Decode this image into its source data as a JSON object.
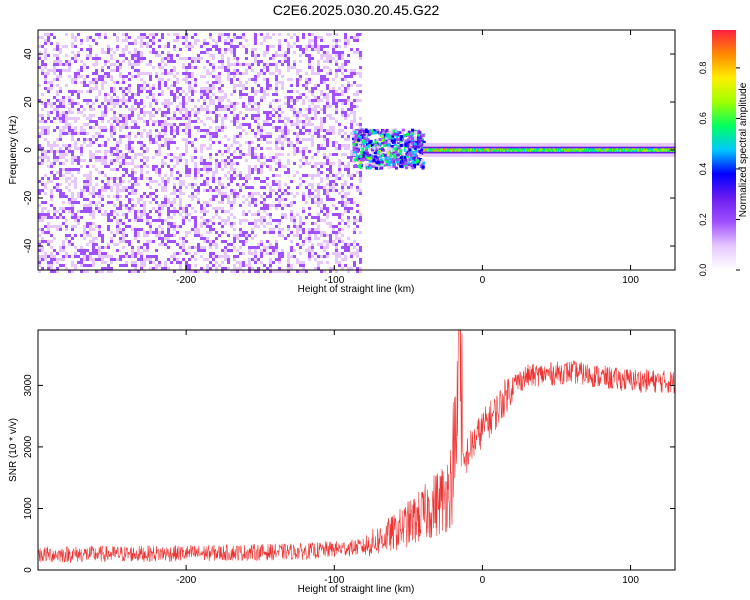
{
  "title": "C2E6.2025.030.20.45.G22",
  "chart_data": [
    {
      "type": "heatmap",
      "xlabel": "Height of straight line (km)",
      "ylabel": "Frequency (Hz)",
      "xlim": [
        -300,
        130
      ],
      "ylim": [
        -50,
        50
      ],
      "xticks": [
        -200,
        -100,
        0,
        100
      ],
      "yticks": [
        -40,
        -20,
        0,
        20,
        40
      ],
      "colorbar": {
        "label": "Normalized spectral amplitude",
        "range": [
          0,
          0.95
        ],
        "ticks": [
          0.0,
          0.2,
          0.4,
          0.6,
          0.8
        ],
        "tick_labels": [
          "0.0",
          "0.2",
          "0.4",
          "0.6",
          "0.8"
        ],
        "colormap": [
          "#ffffff",
          "#e6c8ff",
          "#a050ff",
          "#6a1cf0",
          "#0000ff",
          "#00c8ff",
          "#00ff60",
          "#a0ff00",
          "#ffee00",
          "#ff8800",
          "#ff2040"
        ]
      },
      "regions": [
        {
          "desc": "broadband noise",
          "x": [
            -300,
            -82
          ],
          "freq": [
            -50,
            50
          ],
          "amplitude": 0.1
        },
        {
          "desc": "onset burst",
          "x": [
            -88,
            -40
          ],
          "freq": [
            -7,
            9
          ],
          "amplitude": 0.45
        },
        {
          "desc": "signal line",
          "x": [
            -40,
            130
          ],
          "freq": [
            -2,
            3
          ],
          "amplitude": 0.5,
          "center_freq": 0.5
        }
      ]
    },
    {
      "type": "line",
      "xlabel": "Height of straight line (km)",
      "ylabel": "SNR (10 * v/v)",
      "xlim": [
        -300,
        130
      ],
      "ylim": [
        0,
        3900
      ],
      "xticks": [
        -200,
        -100,
        0,
        100
      ],
      "yticks": [
        0,
        1000,
        2000,
        3000
      ],
      "color": "#ee3333",
      "envelope": [
        {
          "x": -300,
          "y": 250
        },
        {
          "x": -200,
          "y": 270
        },
        {
          "x": -120,
          "y": 300
        },
        {
          "x": -80,
          "y": 380
        },
        {
          "x": -60,
          "y": 600
        },
        {
          "x": -40,
          "y": 900
        },
        {
          "x": -25,
          "y": 1200
        },
        {
          "x": -18,
          "y": 1600
        },
        {
          "x": -15,
          "y": 3700
        },
        {
          "x": -13,
          "y": 1600
        },
        {
          "x": -10,
          "y": 1900
        },
        {
          "x": 0,
          "y": 2300
        },
        {
          "x": 10,
          "y": 2600
        },
        {
          "x": 20,
          "y": 3000
        },
        {
          "x": 30,
          "y": 3150
        },
        {
          "x": 60,
          "y": 3220
        },
        {
          "x": 90,
          "y": 3100
        },
        {
          "x": 130,
          "y": 3050
        }
      ]
    }
  ]
}
